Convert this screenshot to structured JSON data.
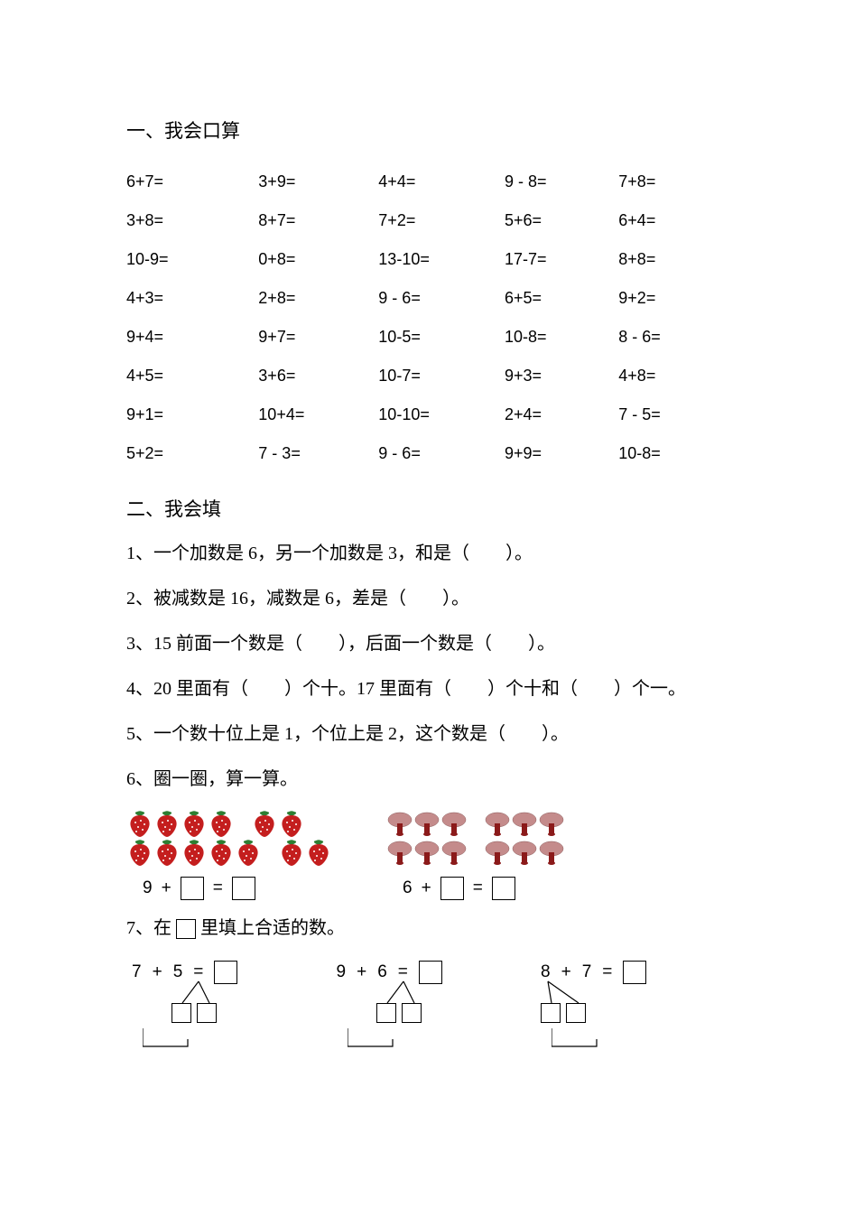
{
  "colors": {
    "text": "#000000",
    "background": "#ffffff",
    "strawberry_body": "#c41e1e",
    "strawberry_leaf": "#2e7d32",
    "strawberry_seed": "#ffffff",
    "mushroom_cap": "#c48b8b",
    "mushroom_stem": "#8b1a1a",
    "box_border": "#000000"
  },
  "section1": {
    "title": "一、我会口算",
    "rows": [
      [
        "6+7=",
        "3+9=",
        "4+4=",
        "9 - 8=",
        "7+8="
      ],
      [
        "3+8=",
        "8+7=",
        "7+2=",
        "5+6=",
        "6+4="
      ],
      [
        "10-9=",
        "0+8=",
        "13-10=",
        "17-7=",
        "8+8="
      ],
      [
        "4+3=",
        "2+8=",
        "9 - 6=",
        "6+5=",
        "9+2="
      ],
      [
        "9+4=",
        "9+7=",
        "10-5=",
        "10-8=",
        "8 - 6="
      ],
      [
        "4+5=",
        "3+6=",
        "10-7=",
        "9+3=",
        "4+8="
      ],
      [
        "9+1=",
        "10+4=",
        "10-10=",
        "2+4=",
        "7 - 5="
      ],
      [
        "5+2=",
        "7 - 3=",
        "9 - 6=",
        "9+9=",
        "10-8="
      ]
    ]
  },
  "section2": {
    "title": "二、我会填",
    "q1": "1、一个加数是  6，另一个加数是  3，和是（　　）。",
    "q2": "2、被减数是  16，减数是  6，差是（　　）。",
    "q3": "3、15 前面一个数是（　　），后面一个数是（　　）。",
    "q4": "4、20 里面有（　　）个十。17 里面有（　　）个十和（　　）个一。",
    "q5": "5、一个数十位上是  1，个位上是  2，这个数是（　　）。",
    "q6_title": "6、圈一圈，算一算。",
    "q6_left": {
      "icon": "strawberry",
      "row1": [
        4,
        2
      ],
      "row2": [
        5,
        2
      ],
      "eq_left": "9",
      "eq_op": "+"
    },
    "q6_right": {
      "icon": "mushroom",
      "row1": [
        3,
        3
      ],
      "row2": [
        3,
        3
      ],
      "eq_left": "6",
      "eq_op": "+"
    },
    "q7_title_pre": "7、在 ",
    "q7_title_post": " 里填上合适的数。",
    "q7": [
      {
        "a": "7",
        "op": "+",
        "b": "5",
        "split_from": "b"
      },
      {
        "a": "9",
        "op": "+",
        "b": "6",
        "split_from": "b"
      },
      {
        "a": "8",
        "op": "+",
        "b": "7",
        "split_from": "a"
      }
    ]
  }
}
